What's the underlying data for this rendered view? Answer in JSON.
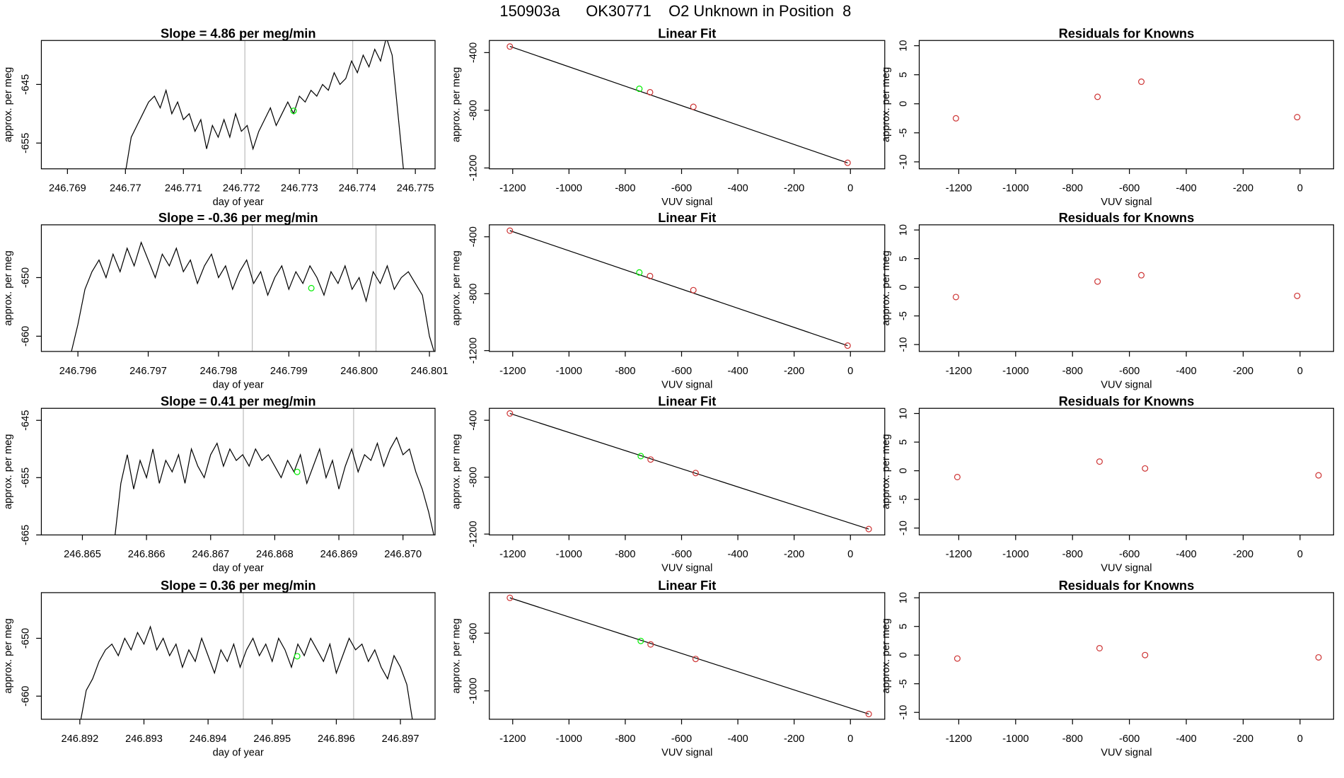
{
  "title": "150903a      OK30771    O2 Unknown in Position  8",
  "chart_data": [
    {
      "type": "line",
      "title": "Slope =  4.86  per meg/min",
      "xlabel": "day of year",
      "ylabel": "approx. per meg",
      "x": [
        246.77,
        246.7701,
        246.7702,
        246.7703,
        246.7704,
        246.7705,
        246.7706,
        246.7707,
        246.7708,
        246.7709,
        246.771,
        246.7711,
        246.7712,
        246.7713,
        246.7714,
        246.7715,
        246.7716,
        246.7717,
        246.7718,
        246.7719,
        246.772,
        246.7721,
        246.7722,
        246.7723,
        246.7724,
        246.7725,
        246.7726,
        246.7727,
        246.7728,
        246.7729,
        246.773,
        246.7731,
        246.7732,
        246.7733,
        246.7734,
        246.7735,
        246.7736,
        246.7737,
        246.7738,
        246.7739,
        246.774,
        246.7741,
        246.7742,
        246.7743,
        246.7744,
        246.7745,
        246.7746,
        246.7747,
        246.7748
      ],
      "values": [
        -660,
        -654,
        -652,
        -650,
        -648,
        -647,
        -649,
        -646,
        -650,
        -648,
        -651,
        -650,
        -653,
        -651,
        -656,
        -652,
        -654,
        -651,
        -654,
        -650,
        -653,
        -652,
        -656,
        -653,
        -651,
        -649,
        -652,
        -650,
        -648,
        -650,
        -647,
        -648,
        -646,
        -647,
        -645,
        -646,
        -643,
        -645,
        -644,
        -641,
        -643,
        -640,
        -642,
        -639,
        -641,
        -637,
        -640,
        -650,
        -660
      ],
      "color": "#000000",
      "vlines": [
        246.77206,
        246.77392
      ],
      "vline_color": "#bbbbbb",
      "highlight": {
        "x": 246.7729,
        "y": -649.5,
        "color": "#00ee00"
      },
      "xlim": [
        246.76855,
        246.77534
      ],
      "ylim": [
        -659.4,
        -637.5
      ],
      "xticks": [
        246.769,
        246.77,
        246.771,
        246.772,
        246.773,
        246.774,
        246.775
      ],
      "yticks": [
        -645,
        -655
      ]
    },
    {
      "type": "scatter",
      "title": "Linear Fit",
      "xlabel": "VUV signal",
      "ylabel": "approx. per meg",
      "x": [
        -1210,
        -712,
        -558,
        -10
      ],
      "values": [
        -358,
        -675,
        -776,
        -1164
      ],
      "color": "#cd3333",
      "fit": {
        "x": [
          -1210,
          -10
        ],
        "y": [
          -357,
          -1165
        ],
        "color": "#000000"
      },
      "highlight": {
        "x": -750,
        "y": -651,
        "color": "#00ee00"
      },
      "xlim": [
        -1283,
        122
      ],
      "ylim": [
        -1206,
        -316
      ],
      "xticks": [
        -1200,
        -1000,
        -800,
        -600,
        -400,
        -200,
        0
      ],
      "yticks": [
        -400,
        -800,
        -1200
      ]
    },
    {
      "type": "scatter",
      "title": "Residuals for Knowns",
      "xlabel": "VUV signal",
      "ylabel": "approx. per meg",
      "x": [
        -1210,
        -712,
        -558,
        -10
      ],
      "values": [
        -2.5,
        1.2,
        3.8,
        -2.3
      ],
      "color": "#cd3333",
      "xlim": [
        -1339,
        118
      ],
      "ylim": [
        -11.2,
        10.9
      ],
      "xticks": [
        -1200,
        -1000,
        -800,
        -600,
        -400,
        -200,
        0
      ],
      "yticks": [
        -10,
        -5,
        0,
        5,
        10
      ]
    },
    {
      "type": "line",
      "title": "Slope =  -0.36  per meg/min",
      "xlabel": "day of year",
      "ylabel": "approx. per meg",
      "x": [
        246.7959,
        246.796,
        246.7961,
        246.7962,
        246.7963,
        246.7964,
        246.7965,
        246.7966,
        246.7967,
        246.7968,
        246.7969,
        246.797,
        246.7971,
        246.7972,
        246.7973,
        246.7974,
        246.7975,
        246.7976,
        246.7977,
        246.7978,
        246.7979,
        246.798,
        246.7981,
        246.7982,
        246.7983,
        246.7984,
        246.7985,
        246.7986,
        246.7987,
        246.7988,
        246.7989,
        246.799,
        246.7991,
        246.7992,
        246.7993,
        246.7994,
        246.7995,
        246.7996,
        246.7997,
        246.7998,
        246.7999,
        246.8,
        246.8001,
        246.8002,
        246.8003,
        246.8004,
        246.8005,
        246.8006,
        246.8007,
        246.8008,
        246.8009,
        246.801,
        246.8011
      ],
      "values": [
        -663,
        -658,
        -652,
        -649,
        -647,
        -650,
        -646,
        -649,
        -645,
        -648,
        -644,
        -647,
        -650,
        -646,
        -648,
        -645,
        -649,
        -647,
        -651,
        -648,
        -646,
        -650,
        -648,
        -652,
        -649,
        -647,
        -651,
        -649,
        -653,
        -650,
        -648,
        -652,
        -649,
        -651,
        -648,
        -650,
        -653,
        -649,
        -651,
        -648,
        -652,
        -650,
        -654,
        -649,
        -651,
        -648,
        -652,
        -650,
        -649,
        -651,
        -653,
        -660,
        -664
      ],
      "color": "#000000",
      "vlines": [
        246.79848,
        246.80024
      ],
      "vline_color": "#bbbbbb",
      "highlight": {
        "x": 246.79932,
        "y": -651.8,
        "color": "#00ee00"
      },
      "xlim": [
        246.79548,
        246.80108
      ],
      "ylim": [
        -662.6,
        -641
      ],
      "xticks": [
        246.796,
        246.797,
        246.798,
        246.799,
        {
          "value": 246.8,
          "label": "246.800"
        },
        246.801
      ],
      "yticks": [
        -650,
        -660
      ]
    },
    {
      "type": "scatter",
      "title": "Linear Fit",
      "xlabel": "VUV signal",
      "ylabel": "approx. per meg",
      "x": [
        -1210,
        -712,
        -558,
        -10
      ],
      "values": [
        -357,
        -676,
        -775,
        -1165
      ],
      "color": "#cd3333",
      "fit": {
        "x": [
          -1210,
          -10
        ],
        "y": [
          -357,
          -1165
        ],
        "color": "#000000"
      },
      "highlight": {
        "x": -750,
        "y": -651,
        "color": "#00ee00"
      },
      "xlim": [
        -1283,
        122
      ],
      "ylim": [
        -1206,
        -316
      ],
      "xticks": [
        -1200,
        -1000,
        -800,
        -600,
        -400,
        -200,
        0
      ],
      "yticks": [
        -400,
        -800,
        -1200
      ]
    },
    {
      "type": "scatter",
      "title": "Residuals for Knowns",
      "xlabel": "VUV signal",
      "ylabel": "approx. per meg",
      "x": [
        -1210,
        -712,
        -558,
        -10
      ],
      "values": [
        -1.7,
        1.0,
        2.1,
        -1.5
      ],
      "color": "#cd3333",
      "xlim": [
        -1339,
        118
      ],
      "ylim": [
        -11.2,
        10.9
      ],
      "xticks": [
        -1200,
        -1000,
        -800,
        -600,
        -400,
        -200,
        0
      ],
      "yticks": [
        -10,
        -5,
        0,
        5,
        10
      ]
    },
    {
      "type": "line",
      "title": "Slope =  0.41  per meg/min",
      "xlabel": "day of year",
      "ylabel": "approx. per meg",
      "x": [
        246.8655,
        246.8656,
        246.8657,
        246.8658,
        246.8659,
        246.866,
        246.8661,
        246.8662,
        246.8663,
        246.8664,
        246.8665,
        246.8666,
        246.8667,
        246.8668,
        246.8669,
        246.867,
        246.8671,
        246.8672,
        246.8673,
        246.8674,
        246.8675,
        246.8676,
        246.8677,
        246.8678,
        246.8679,
        246.868,
        246.8681,
        246.8682,
        246.8683,
        246.8684,
        246.8685,
        246.8686,
        246.8687,
        246.8688,
        246.8689,
        246.869,
        246.8691,
        246.8692,
        246.8693,
        246.8694,
        246.8695,
        246.8696,
        246.8697,
        246.8698,
        246.8699,
        246.87,
        246.8701,
        246.8702,
        246.8703,
        246.8704,
        246.8705
      ],
      "values": [
        -666,
        -656,
        -651,
        -657,
        -652,
        -655,
        -650,
        -656,
        -652,
        -654,
        -651,
        -656,
        -650,
        -653,
        -655,
        -651,
        -649,
        -653,
        -650,
        -652,
        -651,
        -653,
        -650,
        -652,
        -651,
        -653,
        -655,
        -652,
        -654,
        -651,
        -656,
        -653,
        -650,
        -655,
        -652,
        -657,
        -653,
        -650,
        -654,
        -651,
        -652,
        -649,
        -653,
        -650,
        -648,
        -651,
        -650,
        -654,
        -657,
        -661,
        -666
      ],
      "color": "#000000",
      "vlines": [
        246.86751,
        246.86923
      ],
      "vline_color": "#bbbbbb",
      "highlight": {
        "x": 246.86835,
        "y": -654,
        "color": "#00ee00"
      },
      "xlim": [
        246.86436,
        246.8705
      ],
      "ylim": [
        -665,
        -642.9
      ],
      "xticks": [
        246.865,
        246.866,
        246.867,
        246.868,
        246.869,
        {
          "value": 246.87,
          "label": "246.870"
        }
      ],
      "yticks": [
        -645,
        -655,
        -665
      ]
    },
    {
      "type": "scatter",
      "title": "Linear Fit",
      "xlabel": "VUV signal",
      "ylabel": "approx. per meg",
      "x": [
        -1210,
        -710,
        -550,
        65
      ],
      "values": [
        -352,
        -676,
        -771,
        -1165
      ],
      "color": "#cd3333",
      "fit": {
        "x": [
          -1210,
          65
        ],
        "y": [
          -352,
          -1165
        ],
        "color": "#000000"
      },
      "highlight": {
        "x": -745,
        "y": -652,
        "color": "#00ee00"
      },
      "xlim": [
        -1283,
        122
      ],
      "ylim": [
        -1206,
        -316
      ],
      "xticks": [
        -1200,
        -1000,
        -800,
        -600,
        -400,
        -200,
        0
      ],
      "yticks": [
        -400,
        -800,
        -1200
      ]
    },
    {
      "type": "scatter",
      "title": "Residuals for Knowns",
      "xlabel": "VUV signal",
      "ylabel": "approx. per meg",
      "x": [
        -1205,
        -705,
        -545,
        65
      ],
      "values": [
        -1.1,
        1.6,
        0.4,
        -0.8
      ],
      "color": "#cd3333",
      "xlim": [
        -1339,
        118
      ],
      "ylim": [
        -11.2,
        10.9
      ],
      "xticks": [
        -1200,
        -1000,
        -800,
        -600,
        -400,
        -200,
        0
      ],
      "yticks": [
        -10,
        -5,
        0,
        5,
        10
      ]
    },
    {
      "type": "line",
      "title": "Slope =  0.36  per meg/min",
      "xlabel": "day of year",
      "ylabel": "approx. per meg",
      "x": [
        246.892,
        246.8921,
        246.8922,
        246.8923,
        246.8924,
        246.8925,
        246.8926,
        246.8927,
        246.8928,
        246.8929,
        246.893,
        246.8931,
        246.8932,
        246.8933,
        246.8934,
        246.8935,
        246.8936,
        246.8937,
        246.8938,
        246.8939,
        246.894,
        246.8941,
        246.8942,
        246.8943,
        246.8944,
        246.8945,
        246.8946,
        246.8947,
        246.8948,
        246.8949,
        246.895,
        246.8951,
        246.8952,
        246.8953,
        246.8954,
        246.8955,
        246.8956,
        246.8957,
        246.8958,
        246.8959,
        246.896,
        246.8961,
        246.8962,
        246.8963,
        246.8964,
        246.8965,
        246.8966,
        246.8967,
        246.8968,
        246.8969,
        246.897,
        246.8971,
        246.8972
      ],
      "values": [
        -665,
        -659,
        -657,
        -654,
        -652,
        -651,
        -653,
        -650,
        -652,
        -649,
        -651,
        -648,
        -652,
        -650,
        -653,
        -651,
        -655,
        -652,
        -654,
        -650,
        -653,
        -656,
        -652,
        -654,
        -651,
        -655,
        -652,
        -650,
        -653,
        -651,
        -654,
        -650,
        -652,
        -655,
        -651,
        -653,
        -650,
        -652,
        -654,
        -651,
        -656,
        -653,
        -650,
        -652,
        -651,
        -654,
        -652,
        -655,
        -657,
        -653,
        -655,
        -658,
        -665
      ],
      "color": "#000000",
      "vlines": [
        246.89455,
        246.89627
      ],
      "vline_color": "#bbbbbb",
      "highlight": {
        "x": 246.89539,
        "y": -653.1,
        "color": "#00ee00"
      },
      "xlim": [
        246.8914,
        246.89754
      ],
      "ylim": [
        -664,
        -642.1
      ],
      "xticks": [
        246.892,
        246.893,
        246.894,
        246.895,
        246.896,
        246.897
      ],
      "yticks": [
        -650,
        -660
      ]
    },
    {
      "type": "scatter",
      "title": "Linear Fit",
      "xlabel": "VUV signal",
      "ylabel": "approx. per meg",
      "x": [
        -1210,
        -710,
        -550,
        65
      ],
      "values": [
        -355,
        -678,
        -779,
        -1161
      ],
      "color": "#cd3333",
      "fit": {
        "x": [
          -1210,
          65
        ],
        "y": [
          -355,
          -1161
        ],
        "color": "#000000"
      },
      "highlight": {
        "x": -745,
        "y": -654,
        "color": "#00ee00"
      },
      "xlim": [
        -1283,
        122
      ],
      "ylim": [
        -1197,
        -319
      ],
      "xticks": [
        -1200,
        -1000,
        -800,
        -600,
        -400,
        -200,
        0
      ],
      "yticks": [
        -600,
        -1000
      ]
    },
    {
      "type": "scatter",
      "title": "Residuals for Knowns",
      "xlabel": "VUV signal",
      "ylabel": "approx. per meg",
      "x": [
        -1205,
        -705,
        -545,
        65
      ],
      "values": [
        -0.6,
        1.2,
        0,
        -0.4
      ],
      "color": "#cd3333",
      "xlim": [
        -1339,
        118
      ],
      "ylim": [
        -11.2,
        10.9
      ],
      "xticks": [
        -1200,
        -1000,
        -800,
        -600,
        -400,
        -200,
        0
      ],
      "yticks": [
        -10,
        -5,
        0,
        5,
        10
      ]
    }
  ]
}
